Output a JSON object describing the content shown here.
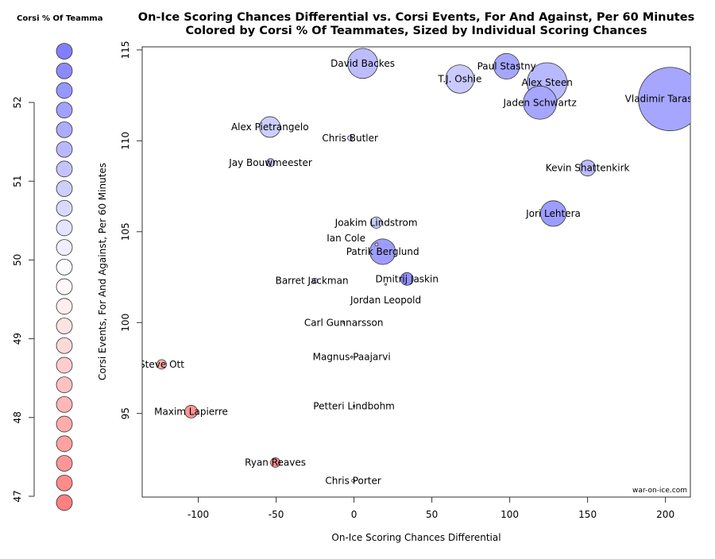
{
  "chart_data": {
    "type": "scatter",
    "title": "On-Ice Scoring Chances Differential vs. Corsi Events, For And Against, Per 60 Minutes",
    "subtitle": "Colored by Corsi % Of Teammates, Sized by Individual Scoring Chances",
    "xlabel": "On-Ice Scoring Chances Differential",
    "ylabel": "Corsi Events, For And Against, Per 60 Minutes",
    "xlim": [
      -136,
      216
    ],
    "ylim": [
      90.4,
      115.17
    ],
    "xticks": [
      -100,
      -50,
      0,
      50,
      100,
      150,
      200
    ],
    "yticks": [
      95,
      100,
      105,
      110,
      115
    ],
    "grid": false,
    "watermark": "war-on-ice.com",
    "legend": {
      "title": "Corsi % Of Teamma",
      "ticks": [
        47,
        48,
        49,
        50,
        51,
        52
      ],
      "range": [
        46.92,
        52.65
      ],
      "placement": "left",
      "colors": {
        "high": "#8080ff",
        "mid": "#ffffff",
        "low": "#ff8080"
      }
    },
    "points": [
      {
        "name": "David Backes",
        "x": 5.6,
        "y": 114.26,
        "size": 36,
        "corsi_tm": 51.3
      },
      {
        "name": "T.J. Oshie",
        "x": 68,
        "y": 113.4,
        "size": 32,
        "corsi_tm": 51.0
      },
      {
        "name": "Paul Stastny",
        "x": 98,
        "y": 114.1,
        "size": 26,
        "corsi_tm": 51.8
      },
      {
        "name": "Alex Steen",
        "x": 124,
        "y": 113.2,
        "size": 63,
        "corsi_tm": 51.4
      },
      {
        "name": "Jaden Schwartz",
        "x": 119.4,
        "y": 112.1,
        "size": 44,
        "corsi_tm": 51.8
      },
      {
        "name": "Vladimir Tarasenko",
        "x": 203,
        "y": 112.3,
        "size": 160,
        "corsi_tm": 51.8
      },
      {
        "name": "Alex Pietrangelo",
        "x": -54,
        "y": 110.76,
        "size": 17,
        "corsi_tm": 50.9
      },
      {
        "name": "Chris Butler",
        "x": -2.5,
        "y": 110.15,
        "size": 1,
        "corsi_tm": 50.8
      },
      {
        "name": "Jay Bouwmeester",
        "x": -53.6,
        "y": 108.8,
        "size": 2.5,
        "corsi_tm": 51.2
      },
      {
        "name": "Kevin Shattenkirk",
        "x": 150,
        "y": 108.5,
        "size": 10,
        "corsi_tm": 51.3
      },
      {
        "name": "Joakim Lindstrom",
        "x": 14.3,
        "y": 105.5,
        "size": 5,
        "corsi_tm": 51.0
      },
      {
        "name": "Jori Lehtera",
        "x": 128,
        "y": 106,
        "size": 26,
        "corsi_tm": 52.0
      },
      {
        "name": "Ian Cole",
        "x": 14.5,
        "y": 104.3,
        "size": 0.4,
        "corsi_tm": 51.0
      },
      {
        "name": "Patrik Berglund",
        "x": 18.4,
        "y": 103.9,
        "size": 26,
        "corsi_tm": 52.0
      },
      {
        "name": "Dmitrij Jaskin",
        "x": 34,
        "y": 102.4,
        "size": 6.4,
        "corsi_tm": 52.3
      },
      {
        "name": "Barret Jackman",
        "x": -25,
        "y": 102.3,
        "size": 1,
        "corsi_tm": 50.8
      },
      {
        "name": "Jordan Leopold",
        "x": 20.4,
        "y": 102.1,
        "size": 0.1,
        "corsi_tm": 50.5
      },
      {
        "name": "Carl Gunnarsson",
        "x": -6.6,
        "y": 100,
        "size": 0.1,
        "corsi_tm": 50.5
      },
      {
        "name": "Magnus Paajarvi",
        "x": -1.5,
        "y": 98.1,
        "size": 0.2,
        "corsi_tm": 51.0
      },
      {
        "name": "Steve Ott",
        "x": -123.5,
        "y": 97.7,
        "size": 3.6,
        "corsi_tm": 47.9
      },
      {
        "name": "Maxim Lapierre",
        "x": -104.6,
        "y": 95.1,
        "size": 6.4,
        "corsi_tm": 47.4
      },
      {
        "name": "Petteri Lindbohm",
        "x": 0,
        "y": 95.4,
        "size": 0.1,
        "corsi_tm": 50.3
      },
      {
        "name": "Ryan Reaves",
        "x": -50.5,
        "y": 92.3,
        "size": 3.6,
        "corsi_tm": 47.2
      },
      {
        "name": "Chris Porter",
        "x": -0.5,
        "y": 91.3,
        "size": 0.4,
        "corsi_tm": 50.5
      }
    ]
  }
}
